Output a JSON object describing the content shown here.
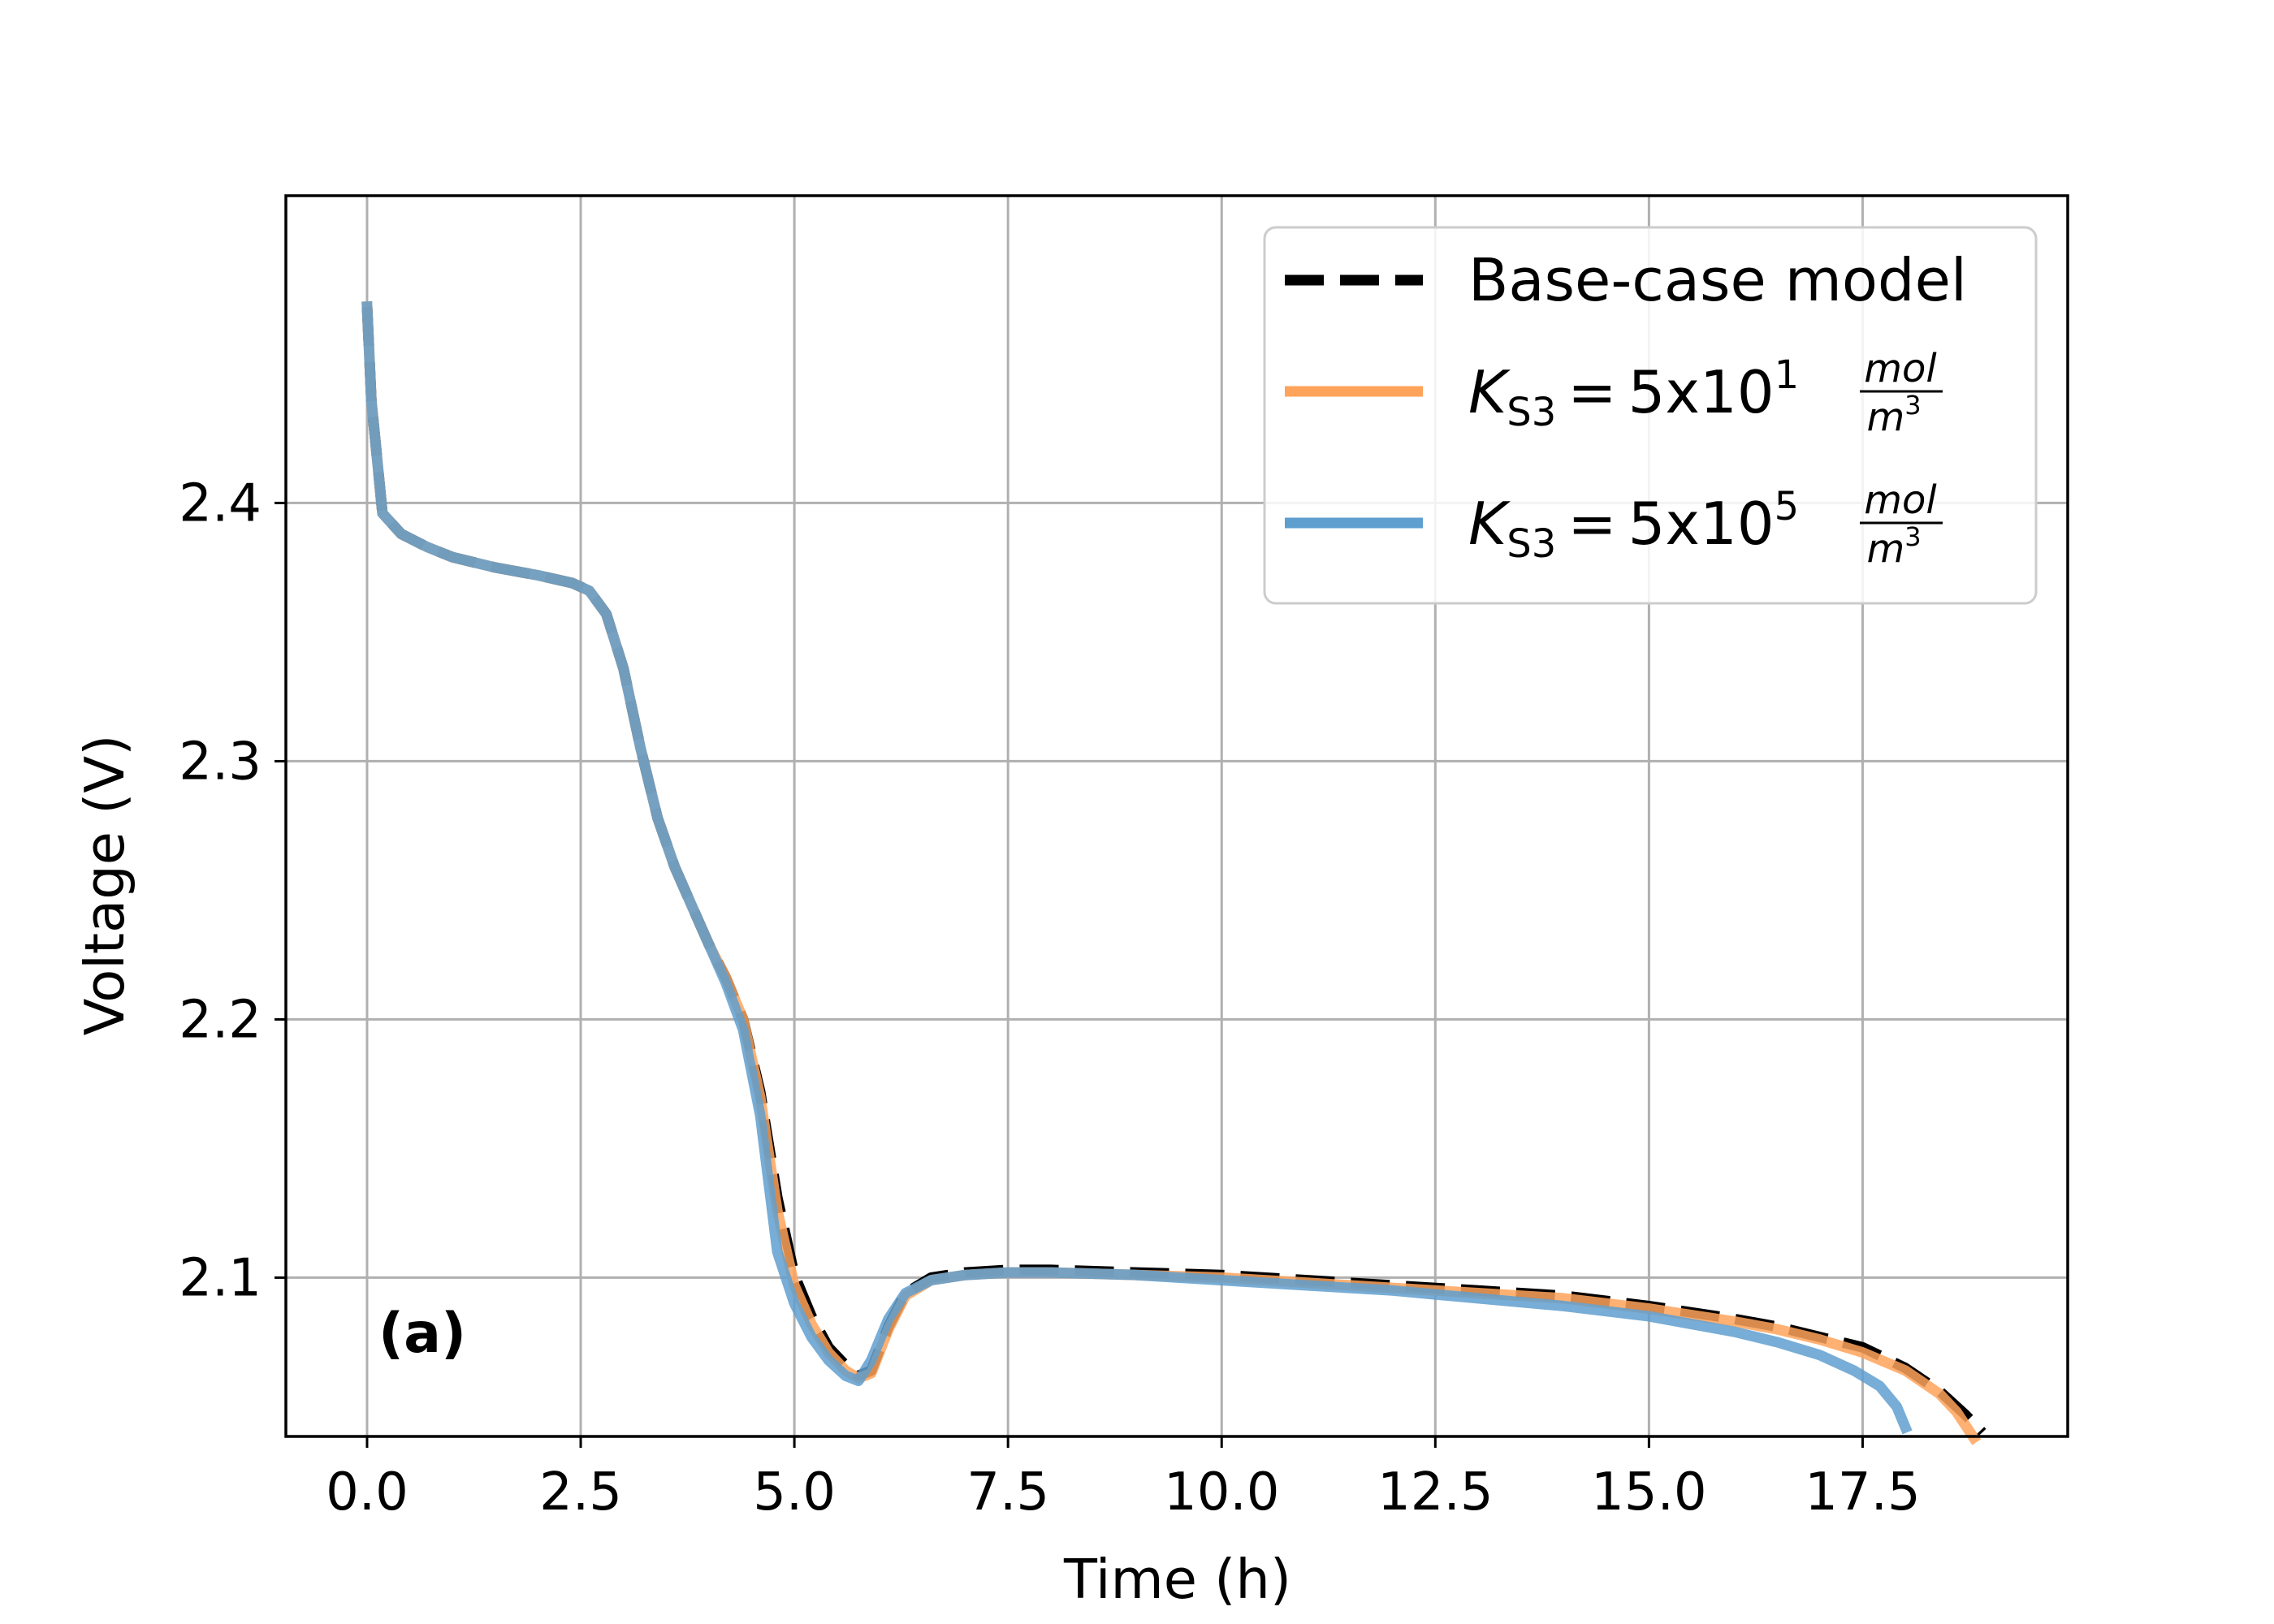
{
  "chart_data": {
    "type": "line",
    "xlabel": "Time (h)",
    "ylabel": "Voltage (V)",
    "xlim": [
      -0.95,
      19.9
    ],
    "ylim": [
      2.0385,
      2.519
    ],
    "x_ticks": [
      0.0,
      2.5,
      5.0,
      7.5,
      10.0,
      12.5,
      15.0,
      17.5
    ],
    "x_tick_labels": [
      "0.0",
      "2.5",
      "5.0",
      "7.5",
      "10.0",
      "12.5",
      "15.0",
      "17.5"
    ],
    "y_ticks": [
      2.1,
      2.2,
      2.3,
      2.4
    ],
    "y_tick_labels": [
      "2.1",
      "2.2",
      "2.3",
      "2.4"
    ],
    "grid": true,
    "legend_position": "top-right",
    "annotation": "(a)",
    "series": [
      {
        "name": "Base-case model",
        "color": "#000000",
        "style": "dashed",
        "x": [
          0.0,
          0.05,
          0.18,
          0.4,
          0.7,
          1.0,
          1.5,
          2.0,
          2.4,
          2.6,
          2.8,
          3.0,
          3.2,
          3.4,
          3.6,
          3.8,
          4.0,
          4.2,
          4.4,
          4.6,
          4.8,
          5.0,
          5.2,
          5.4,
          5.6,
          5.75,
          5.9,
          6.1,
          6.3,
          6.6,
          7.0,
          7.5,
          8.0,
          9.0,
          10.0,
          11.0,
          12.0,
          13.0,
          14.0,
          15.0,
          16.0,
          16.5,
          17.0,
          17.5,
          18.0,
          18.4,
          18.7,
          18.9
        ],
        "y": [
          2.476,
          2.44,
          2.396,
          2.388,
          2.383,
          2.379,
          2.375,
          2.372,
          2.369,
          2.366,
          2.357,
          2.336,
          2.305,
          2.278,
          2.259,
          2.244,
          2.229,
          2.216,
          2.2,
          2.172,
          2.131,
          2.101,
          2.085,
          2.073,
          2.066,
          2.062,
          2.064,
          2.081,
          2.094,
          2.1,
          2.102,
          2.103,
          2.103,
          2.102,
          2.101,
          2.099,
          2.097,
          2.095,
          2.093,
          2.089,
          2.084,
          2.081,
          2.077,
          2.073,
          2.065,
          2.056,
          2.047,
          2.04
        ]
      },
      {
        "name": "K_S3 = 5x10^1 mol/m^3",
        "color": "#ffa35a",
        "style": "solid",
        "x": [
          0.0,
          0.05,
          0.18,
          0.4,
          0.7,
          1.0,
          1.5,
          2.0,
          2.4,
          2.6,
          2.8,
          3.0,
          3.2,
          3.4,
          3.6,
          3.8,
          4.0,
          4.2,
          4.4,
          4.6,
          4.8,
          5.0,
          5.2,
          5.4,
          5.6,
          5.75,
          5.9,
          6.1,
          6.3,
          6.6,
          7.0,
          7.5,
          8.0,
          9.0,
          10.0,
          11.0,
          12.0,
          13.0,
          14.0,
          15.0,
          16.0,
          16.5,
          17.0,
          17.5,
          18.0,
          18.4,
          18.6,
          18.8
        ],
        "y": [
          2.476,
          2.44,
          2.396,
          2.388,
          2.383,
          2.379,
          2.375,
          2.372,
          2.369,
          2.366,
          2.357,
          2.336,
          2.305,
          2.278,
          2.259,
          2.244,
          2.229,
          2.216,
          2.2,
          2.17,
          2.126,
          2.097,
          2.082,
          2.071,
          2.064,
          2.061,
          2.063,
          2.08,
          2.093,
          2.099,
          2.101,
          2.102,
          2.102,
          2.101,
          2.1,
          2.098,
          2.096,
          2.094,
          2.092,
          2.088,
          2.083,
          2.08,
          2.076,
          2.071,
          2.064,
          2.055,
          2.048,
          2.038
        ]
      },
      {
        "name": "K_S3 = 5x10^5 mol/m^3",
        "color": "#5f9fcf",
        "style": "solid",
        "x": [
          0.0,
          0.05,
          0.18,
          0.4,
          0.7,
          1.0,
          1.5,
          2.0,
          2.4,
          2.6,
          2.8,
          3.0,
          3.2,
          3.4,
          3.6,
          3.8,
          4.0,
          4.2,
          4.4,
          4.6,
          4.8,
          5.0,
          5.2,
          5.4,
          5.6,
          5.75,
          5.9,
          6.1,
          6.3,
          6.6,
          7.0,
          7.5,
          8.0,
          9.0,
          10.0,
          11.0,
          12.0,
          13.0,
          14.0,
          15.0,
          16.0,
          16.5,
          17.0,
          17.4,
          17.7,
          17.9,
          18.0
        ],
        "y": [
          2.476,
          2.44,
          2.396,
          2.388,
          2.383,
          2.379,
          2.375,
          2.372,
          2.369,
          2.366,
          2.357,
          2.336,
          2.305,
          2.278,
          2.259,
          2.244,
          2.229,
          2.214,
          2.196,
          2.163,
          2.11,
          2.09,
          2.077,
          2.068,
          2.062,
          2.06,
          2.068,
          2.084,
          2.094,
          2.099,
          2.101,
          2.102,
          2.102,
          2.101,
          2.099,
          2.097,
          2.095,
          2.092,
          2.089,
          2.085,
          2.079,
          2.075,
          2.07,
          2.064,
          2.058,
          2.05,
          2.042
        ]
      }
    ]
  },
  "legend": {
    "entry1": "Base-case model",
    "k_symbol": "K",
    "k_sub": "S3",
    "equals": "=",
    "coef1": "5x10",
    "exp1": "1",
    "coef2": "5x10",
    "exp2": "5",
    "unit_num": "mol",
    "unit_den": "m",
    "unit_den_exp": "3"
  }
}
